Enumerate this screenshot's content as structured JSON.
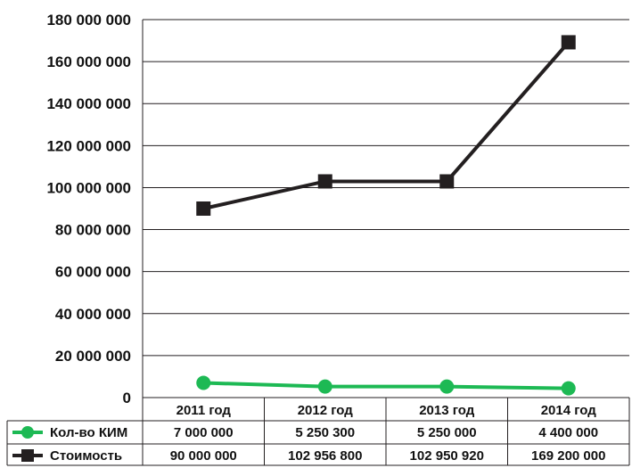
{
  "chart_data": {
    "type": "line",
    "categories": [
      "2011 год",
      "2012 год",
      "2013 год",
      "2014 год"
    ],
    "ylim": [
      0,
      180000000
    ],
    "y_ticks": [
      "0",
      "20 000 000",
      "40 000 000",
      "60 000 000",
      "80 000 000",
      "100 000 000",
      "120 000 000",
      "140 000 000",
      "160 000 000",
      "180 000 000"
    ],
    "grid": true,
    "legend_placement": "data table below plot",
    "series": [
      {
        "name": "Кол-во КИМ",
        "values": [
          7000000,
          5250300,
          5250000,
          4400000
        ],
        "labels": [
          "7 000 000",
          "5 250 300",
          "5 250 000",
          "4 400 000"
        ],
        "color": "#1DB954",
        "marker": "circle"
      },
      {
        "name": "Стоимость",
        "values": [
          90000000,
          102956800,
          102950920,
          169200000
        ],
        "labels": [
          "90 000 000",
          "102 956 800",
          "102 950 920",
          "169 200 000"
        ],
        "color": "#231F20",
        "marker": "square"
      }
    ]
  }
}
